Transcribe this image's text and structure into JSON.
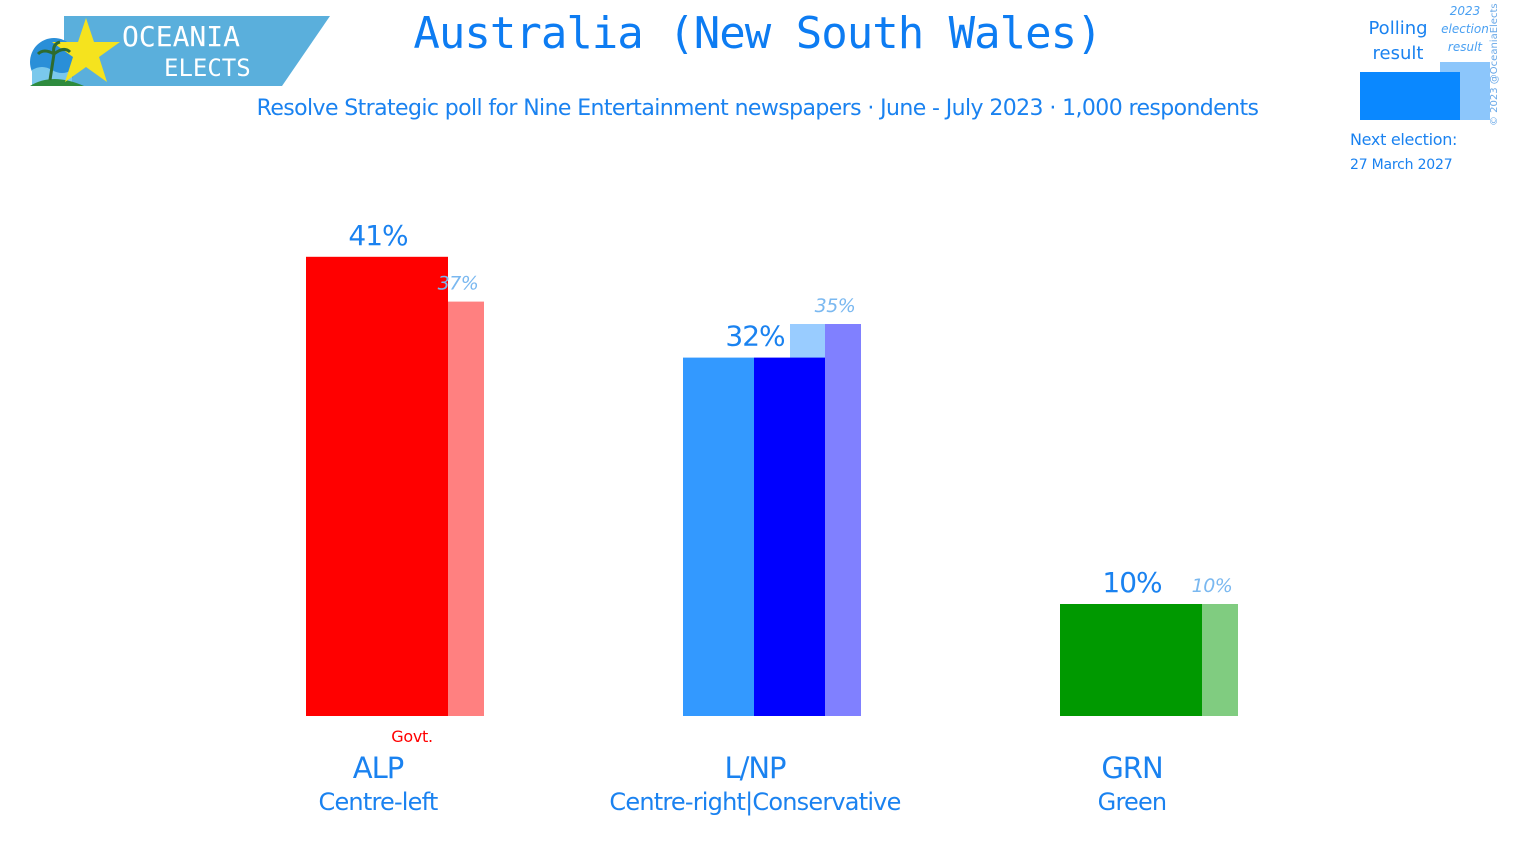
{
  "header": {
    "title": "Australia (New South Wales)",
    "subtitle": "Resolve Strategic poll for Nine Entertainment newspapers · June - July 2023 · 1,000 respondents"
  },
  "logo": {
    "line1": "OCEANIA",
    "line2": "ELECTS",
    "banner_color": "#5aafdc",
    "star_color": "#f5e31e"
  },
  "legend": {
    "polling_label_line1": "Polling",
    "polling_label_line2": "result",
    "election_label_line1": "2023",
    "election_label_line2": "election",
    "election_label_line3": "result",
    "next_election_label": "Next election:",
    "next_election_date": "27 March 2027"
  },
  "copyright": "© 2023 @OceaniaElects",
  "chart_data": {
    "type": "bar",
    "title": "Australia (New South Wales)",
    "ylim": [
      0,
      45
    ],
    "grid": false,
    "series": [
      {
        "name": "Polling result",
        "values": [
          41,
          32,
          10
        ]
      },
      {
        "name": "2023 election result",
        "values": [
          37,
          35,
          10
        ]
      }
    ],
    "parties": [
      {
        "abbr": "ALP",
        "ideology": "Centre-left",
        "poll": 41,
        "poll_label": "41%",
        "prev": 37,
        "prev_label": "37%",
        "badge": "Govt.",
        "poll_color": "#ff0000",
        "prev_color": "#ff8080"
      },
      {
        "abbr": "L/NP",
        "ideology": "Centre-right|Conservative",
        "poll": 32,
        "poll_label": "32%",
        "prev": 35,
        "prev_label": "35%",
        "split_colors": [
          "#3399ff",
          "#0000ff"
        ],
        "prev_split_colors": [
          "#99ccff",
          "#8080ff"
        ]
      },
      {
        "abbr": "GRN",
        "ideology": "Green",
        "poll": 10,
        "poll_label": "10%",
        "prev": 10,
        "prev_label": "10%",
        "poll_color": "#009900",
        "prev_color": "#80cc80"
      }
    ]
  },
  "colors": {
    "title": "#0d7cf2",
    "label": "#1a82f0",
    "prev_label": "#7ab8f0",
    "badge": "#ff0000"
  }
}
